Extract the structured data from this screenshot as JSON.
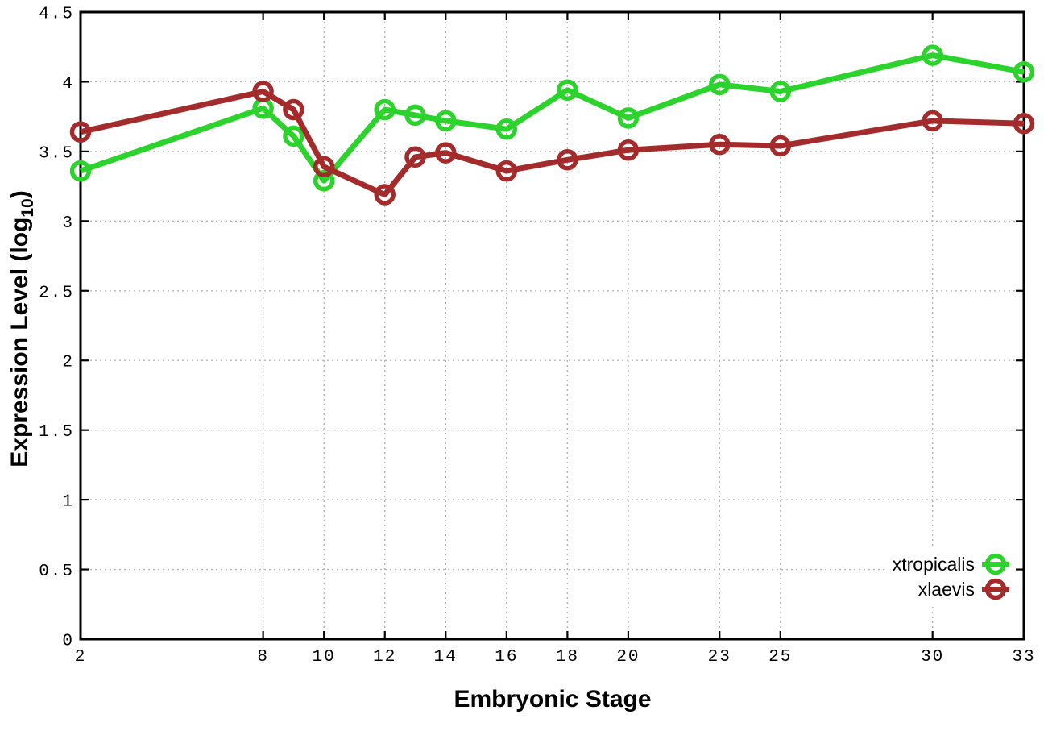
{
  "chart_data": {
    "type": "line",
    "title": "",
    "xlabel": "Embryonic Stage",
    "ylabel": "Expression Level (log10)",
    "ylabel_parts": {
      "main": "Expression Level (log",
      "sub": "10",
      "close": ")"
    },
    "x": [
      2,
      8,
      9,
      10,
      12,
      13,
      14,
      16,
      18,
      20,
      23,
      25,
      30,
      33
    ],
    "xtick_labels": [
      2,
      8,
      10,
      12,
      14,
      16,
      18,
      20,
      23,
      25,
      30,
      33
    ],
    "ytick_values": [
      0,
      0.5,
      1,
      1.5,
      2,
      2.5,
      3,
      3.5,
      4,
      4.5
    ],
    "ytick_labels": [
      "0",
      "0.5",
      "1",
      "1.5",
      "2",
      "2.5",
      "3",
      "3.5",
      "4",
      "4.5"
    ],
    "xlim": [
      2,
      33
    ],
    "ylim": [
      0,
      4.5
    ],
    "grid": true,
    "legend_position": "bottom-right",
    "series": [
      {
        "name": "xtropicalis",
        "color": "#2cd32c",
        "values": [
          3.36,
          3.81,
          3.61,
          3.29,
          3.8,
          3.76,
          3.72,
          3.66,
          3.94,
          3.74,
          3.98,
          3.93,
          4.19,
          4.07
        ]
      },
      {
        "name": "xlaevis",
        "color": "#a42b2b",
        "values": [
          3.64,
          3.93,
          3.8,
          3.39,
          3.19,
          3.46,
          3.49,
          3.36,
          3.44,
          3.51,
          3.55,
          3.54,
          3.72,
          3.7
        ]
      }
    ],
    "axis_color": "#000000",
    "grid_color": "#b4b4b4",
    "background": "#ffffff"
  }
}
